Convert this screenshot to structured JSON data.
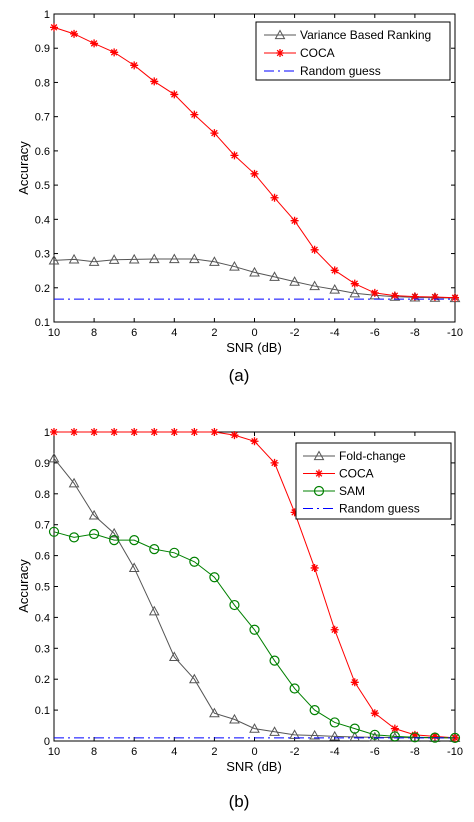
{
  "chart_data": [
    {
      "type": "line",
      "panel_label": "(a)",
      "xlabel": "SNR (dB)",
      "ylabel": "Accuracy",
      "xlim": [
        10,
        -10
      ],
      "ylim": [
        0.1,
        1
      ],
      "x_reversed": true,
      "xticks": [
        10,
        8,
        6,
        4,
        2,
        0,
        -2,
        -4,
        -6,
        -8,
        -10
      ],
      "xtick_labels": [
        "10",
        "8",
        "6",
        "4",
        "2",
        "0",
        "-2",
        "-4",
        "-6",
        "-8",
        "-10"
      ],
      "yticks": [
        0.1,
        0.2,
        0.3,
        0.4,
        0.5,
        0.6,
        0.7,
        0.8,
        0.9,
        1
      ],
      "ytick_labels": [
        "0.1",
        "0.2",
        "0.3",
        "0.4",
        "0.5",
        "0.6",
        "0.7",
        "0.8",
        "0.9",
        "1"
      ],
      "grid": false,
      "legend_position": "top-right",
      "x": [
        10,
        9,
        8,
        7,
        6,
        5,
        4,
        3,
        2,
        1,
        0,
        -1,
        -2,
        -3,
        -4,
        -5,
        -6,
        -7,
        -8,
        -9,
        -10
      ],
      "series": [
        {
          "name": "Variance Based Ranking",
          "color": "#555555",
          "marker": "triangle",
          "line": "solid",
          "values": [
            0.28,
            0.283,
            0.276,
            0.282,
            0.283,
            0.284,
            0.284,
            0.284,
            0.276,
            0.262,
            0.245,
            0.232,
            0.218,
            0.205,
            0.195,
            0.184,
            0.178,
            0.174,
            0.172,
            0.171,
            0.17
          ]
        },
        {
          "name": "COCA",
          "color": "#ff0000",
          "marker": "star",
          "line": "solid",
          "values": [
            0.961,
            0.942,
            0.914,
            0.888,
            0.85,
            0.803,
            0.765,
            0.706,
            0.652,
            0.587,
            0.533,
            0.463,
            0.396,
            0.311,
            0.251,
            0.212,
            0.185,
            0.177,
            0.174,
            0.173,
            0.171
          ]
        },
        {
          "name": "Random guess",
          "color": "#0000ff",
          "marker": "none",
          "line": "dashdot",
          "values": [
            0.167,
            0.167,
            0.167,
            0.167,
            0.167,
            0.167,
            0.167,
            0.167,
            0.167,
            0.167,
            0.167,
            0.167,
            0.167,
            0.167,
            0.167,
            0.167,
            0.167,
            0.167,
            0.167,
            0.167,
            0.167
          ]
        }
      ]
    },
    {
      "type": "line",
      "panel_label": "(b)",
      "xlabel": "SNR (dB)",
      "ylabel": "Accuracy",
      "xlim": [
        10,
        -10
      ],
      "ylim": [
        0,
        1
      ],
      "x_reversed": true,
      "xticks": [
        10,
        8,
        6,
        4,
        2,
        0,
        -2,
        -4,
        -6,
        -8,
        -10
      ],
      "xtick_labels": [
        "10",
        "8",
        "6",
        "4",
        "2",
        "0",
        "-2",
        "-4",
        "-6",
        "-8",
        "-10"
      ],
      "yticks": [
        0,
        0.1,
        0.2,
        0.3,
        0.4,
        0.5,
        0.6,
        0.7,
        0.8,
        0.9,
        1
      ],
      "ytick_labels": [
        "0",
        "0.1",
        "0.2",
        "0.3",
        "0.4",
        "0.5",
        "0.6",
        "0.7",
        "0.8",
        "0.9",
        "1"
      ],
      "grid": false,
      "legend_position": "top-right",
      "x": [
        10,
        9,
        8,
        7,
        6,
        5,
        4,
        3,
        2,
        1,
        0,
        -1,
        -2,
        -3,
        -4,
        -5,
        -6,
        -7,
        -8,
        -9,
        -10
      ],
      "series": [
        {
          "name": "Fold-change",
          "color": "#555555",
          "marker": "triangle",
          "line": "solid",
          "values": [
            0.915,
            0.834,
            0.73,
            0.672,
            0.56,
            0.42,
            0.272,
            0.2,
            0.09,
            0.07,
            0.04,
            0.03,
            0.02,
            0.018,
            0.015,
            0.013,
            0.012,
            0.011,
            0.011,
            0.01,
            0.01
          ]
        },
        {
          "name": "COCA",
          "color": "#ff0000",
          "marker": "star",
          "line": "solid",
          "values": [
            1,
            1,
            1,
            1,
            1,
            1,
            1,
            1,
            1,
            0.99,
            0.97,
            0.9,
            0.74,
            0.56,
            0.36,
            0.19,
            0.09,
            0.04,
            0.02,
            0.015,
            0.01
          ]
        },
        {
          "name": "SAM",
          "color": "#008000",
          "marker": "circle",
          "line": "solid",
          "values": [
            0.677,
            0.659,
            0.67,
            0.65,
            0.65,
            0.621,
            0.609,
            0.58,
            0.53,
            0.44,
            0.36,
            0.26,
            0.17,
            0.1,
            0.06,
            0.04,
            0.02,
            0.015,
            0.012,
            0.011,
            0.01
          ]
        },
        {
          "name": "Random guess",
          "color": "#0000ff",
          "marker": "none",
          "line": "dashdot",
          "values": [
            0.01,
            0.01,
            0.01,
            0.01,
            0.01,
            0.01,
            0.01,
            0.01,
            0.01,
            0.01,
            0.01,
            0.01,
            0.01,
            0.01,
            0.01,
            0.01,
            0.01,
            0.01,
            0.01,
            0.01,
            0.01
          ]
        }
      ]
    }
  ]
}
